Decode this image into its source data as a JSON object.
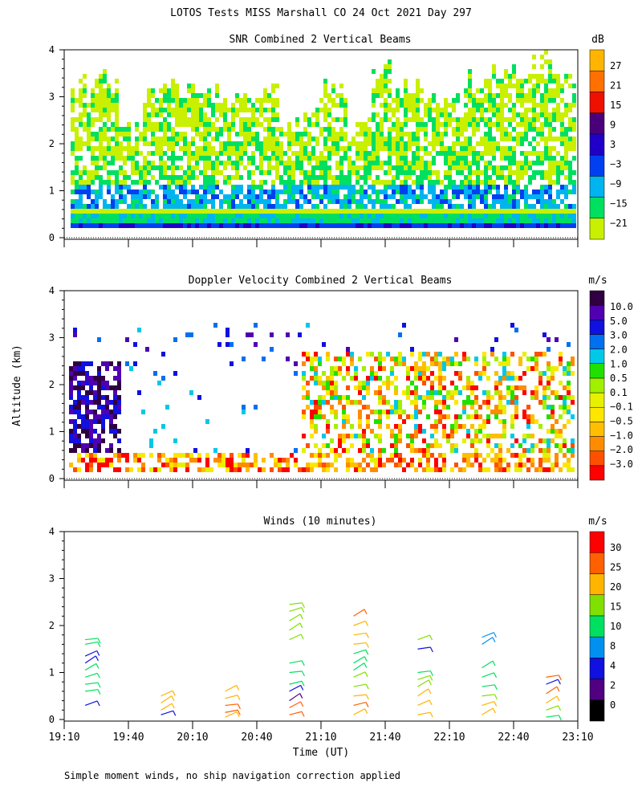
{
  "title": "LOTOS Tests MISS Marshall CO  24 Oct 2021 Day 297",
  "shared_axes": {
    "xlabel": "Time (UT)",
    "ylabel": "Altitude (km)",
    "x_ticks": [
      "19:10",
      "19:40",
      "20:10",
      "20:40",
      "21:10",
      "21:40",
      "22:10",
      "22:40",
      "23:10"
    ],
    "y_ticks": [
      "0",
      "1",
      "2",
      "3",
      "4"
    ]
  },
  "footnote": "Simple moment winds, no ship navigation correction applied",
  "colors": {
    "snr": [
      "#c8f000",
      "#00e060",
      "#00b4f0",
      "#0040f0",
      "#2000c8",
      "#4a007a",
      "#f01000",
      "#ff7000",
      "#ffb400"
    ],
    "doppler": [
      "#ff0000",
      "#ff5000",
      "#ff8c00",
      "#ffbe00",
      "#ffe600",
      "#e6f000",
      "#a0f000",
      "#20e000",
      "#00c8e8",
      "#0070f0",
      "#1010e0",
      "#5000b0",
      "#300040"
    ],
    "winds": [
      "#000000",
      "#500080",
      "#1010e0",
      "#0090f0",
      "#00e060",
      "#80e000",
      "#ffb400",
      "#ff6000",
      "#ff0000"
    ]
  },
  "chart_data": [
    {
      "type": "heatmap",
      "title": "SNR Combined 2 Vertical Beams",
      "xlim_hours_ut": [
        19.1667,
        23.1667
      ],
      "ylim_km": [
        0,
        4
      ],
      "colorbar": {
        "unit": "dB",
        "labels": [
          "27",
          "21",
          "15",
          "9",
          "3",
          "−3",
          "−9",
          "−15",
          "−21"
        ]
      },
      "band_levels_db": [
        -21,
        -15,
        -9,
        -3,
        3,
        9,
        15,
        21,
        27
      ],
      "profile_top_km": [
        3.2,
        3.3,
        2.2,
        3.1,
        3.2,
        3.2,
        3.0,
        2.8,
        2.9,
        2.5,
        2.7,
        3.0,
        2.3,
        3.5,
        3.2,
        3.1,
        2.9,
        3.3,
        3.4,
        3.6,
        3.7,
        3.5
      ]
    },
    {
      "type": "heatmap",
      "title": "Doppler Velocity Combined 2 Vertical Beams",
      "xlim_hours_ut": [
        19.1667,
        23.1667
      ],
      "ylim_km": [
        0,
        4
      ],
      "colorbar": {
        "unit": "m/s",
        "labels": [
          "10.0",
          "5.0",
          "3.0",
          "2.0",
          "1.0",
          "0.5",
          "0.1",
          "−0.1",
          "−0.5",
          "−1.0",
          "−2.0",
          "−3.0"
        ]
      }
    },
    {
      "type": "scatter",
      "title": "Winds (10 minutes)",
      "xlim_hours_ut": [
        19.1667,
        23.1667
      ],
      "ylim_km": [
        0,
        4
      ],
      "colorbar": {
        "unit": "m/s",
        "labels": [
          "30",
          "25",
          "20",
          "15",
          "10",
          "8",
          "4",
          "2",
          "0"
        ]
      },
      "profiles": [
        {
          "time_ut": 19.33,
          "heights_km": [
            0.3,
            0.6,
            0.75,
            0.9,
            1.05,
            1.2,
            1.35,
            1.6,
            1.7
          ],
          "speeds_ms": [
            4,
            12,
            12,
            10,
            10,
            6,
            6,
            14,
            14
          ]
        },
        {
          "time_ut": 19.92,
          "heights_km": [
            0.1,
            0.2,
            0.35,
            0.5
          ],
          "speeds_ms": [
            6,
            20,
            22,
            22
          ]
        },
        {
          "time_ut": 20.42,
          "heights_km": [
            0.05,
            0.15,
            0.3,
            0.45,
            0.6
          ],
          "speeds_ms": [
            24,
            25,
            25,
            22,
            22
          ]
        },
        {
          "time_ut": 20.92,
          "heights_km": [
            0.1,
            0.25,
            0.4,
            0.6,
            0.75,
            1.0,
            1.2,
            1.7,
            1.9,
            2.1,
            2.3,
            2.45
          ],
          "speeds_ms": [
            25,
            26,
            2,
            6,
            10,
            14,
            14,
            18,
            18,
            18,
            17,
            17
          ]
        },
        {
          "time_ut": 21.42,
          "heights_km": [
            0.1,
            0.3,
            0.5,
            0.7,
            0.9,
            1.05,
            1.2,
            1.4,
            1.6,
            1.8,
            2.0,
            2.2
          ],
          "speeds_ms": [
            24,
            25,
            22,
            18,
            16,
            14,
            12,
            14,
            20,
            22,
            20,
            25
          ]
        },
        {
          "time_ut": 21.92,
          "heights_km": [
            0.1,
            0.3,
            0.5,
            0.7,
            0.85,
            1.0,
            1.5,
            1.7
          ],
          "speeds_ms": [
            24,
            24,
            22,
            18,
            16,
            12,
            6,
            16
          ]
        },
        {
          "time_ut": 22.42,
          "heights_km": [
            0.1,
            0.3,
            0.5,
            0.7,
            0.9,
            1.1,
            1.6,
            1.75
          ],
          "speeds_ms": [
            24,
            20,
            18,
            14,
            12,
            10,
            8,
            8
          ]
        },
        {
          "time_ut": 22.92,
          "heights_km": [
            0.05,
            0.2,
            0.35,
            0.55,
            0.75,
            0.9
          ],
          "speeds_ms": [
            14,
            16,
            20,
            25,
            4,
            26
          ]
        }
      ]
    }
  ]
}
